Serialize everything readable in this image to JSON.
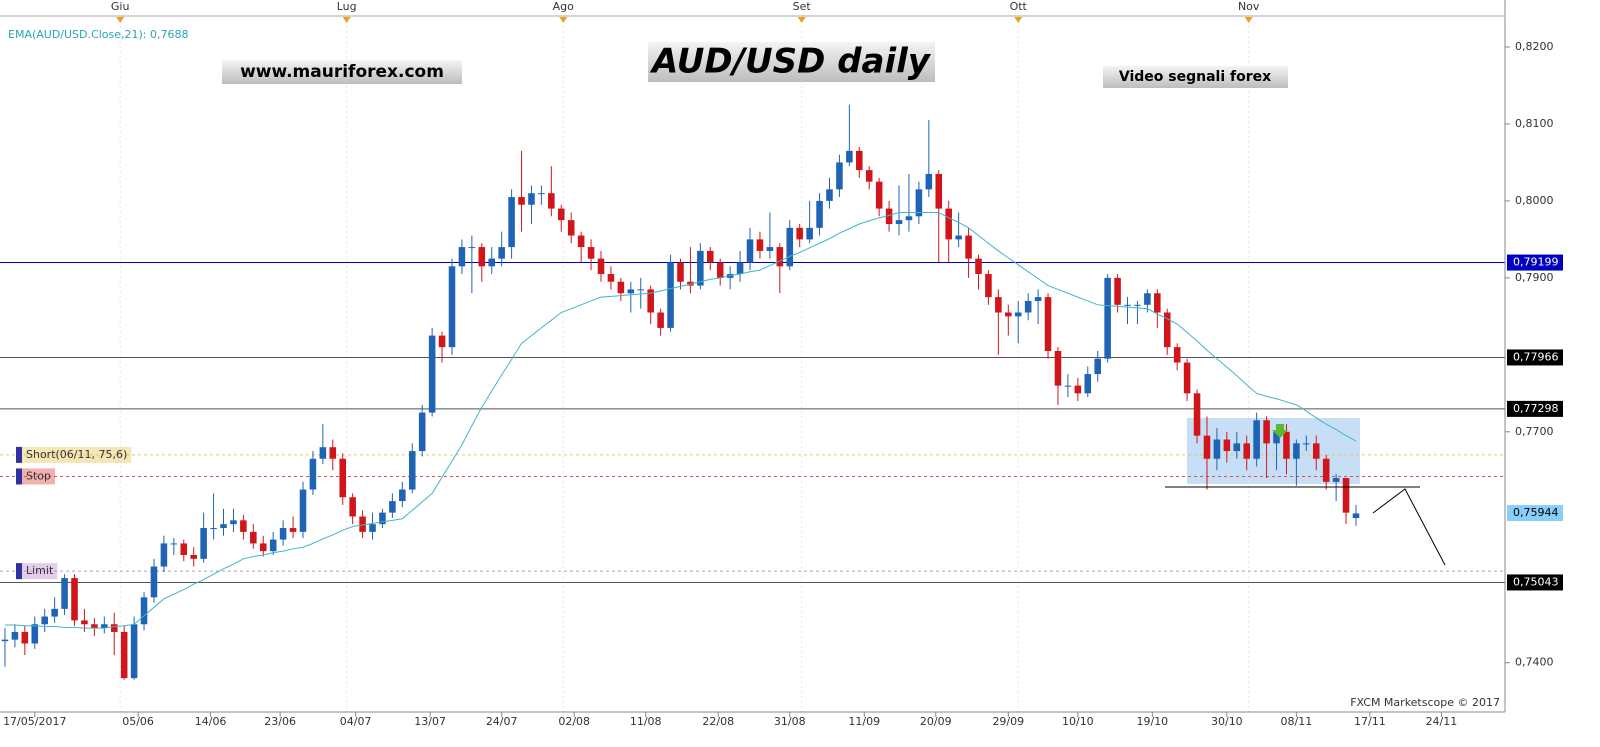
{
  "chart_data": {
    "type": "candlestick",
    "title": "AUD/USD daily",
    "annotations": [
      "www.mauriforex.com",
      "Video segnali forex",
      "FXCM Marketscope © 2017"
    ],
    "ema": {
      "name": "EMA(AUD/USD.Close,21): 0,7688",
      "color": "#3cb8c8",
      "values": [
        0.7449,
        0.7449,
        0.7448,
        0.7448,
        0.7447,
        0.7447,
        0.7446,
        0.7446,
        0.7445,
        0.7445,
        0.7445,
        0.7447,
        0.7448,
        0.745,
        0.7461,
        0.7472,
        0.7483,
        0.7489,
        0.7495,
        0.7502,
        0.7508,
        0.7515,
        0.7522,
        0.7528,
        0.7535,
        0.7538,
        0.754,
        0.7543,
        0.7545,
        0.7548,
        0.755,
        0.7555,
        0.7561,
        0.7566,
        0.7572,
        0.7577,
        0.7579,
        0.7581,
        0.7583,
        0.7585,
        0.7587,
        0.7598,
        0.7609,
        0.762,
        0.7641,
        0.7662,
        0.7683,
        0.7708,
        0.7732,
        0.7753,
        0.7774,
        0.7794,
        0.7815,
        0.7825,
        0.7835,
        0.7845,
        0.7855,
        0.786,
        0.7865,
        0.787,
        0.7875,
        0.7876,
        0.7877,
        0.7878,
        0.7879,
        0.788,
        0.7883,
        0.7886,
        0.7889,
        0.7892,
        0.7895,
        0.7898,
        0.79,
        0.7903,
        0.7905,
        0.7908,
        0.791,
        0.7916,
        0.7922,
        0.7928,
        0.7933,
        0.7939,
        0.7945,
        0.7951,
        0.7958,
        0.7964,
        0.797,
        0.7974,
        0.7978,
        0.7981,
        0.7985,
        0.7985,
        0.7985,
        0.7985,
        0.7985,
        0.7978,
        0.7972,
        0.7965,
        0.7955,
        0.7945,
        0.7935,
        0.7926,
        0.7917,
        0.7908,
        0.7899,
        0.789,
        0.7885,
        0.788,
        0.7875,
        0.787,
        0.7865,
        0.7864,
        0.7863,
        0.7862,
        0.7861,
        0.786,
        0.7853,
        0.7847,
        0.784,
        0.7829,
        0.7818,
        0.7806,
        0.7795,
        0.7784,
        0.7773,
        0.7761,
        0.775,
        0.7746,
        0.7743,
        0.7739,
        0.7735,
        0.7727,
        0.7718,
        0.771,
        0.7703,
        0.7695,
        0.7688
      ]
    },
    "open": [
      0.7428,
      0.743,
      0.744,
      0.7425,
      0.745,
      0.746,
      0.747,
      0.751,
      0.7455,
      0.745,
      0.7445,
      0.745,
      0.744,
      0.738,
      0.745,
      0.7485,
      0.7525,
      0.7555,
      0.7555,
      0.754,
      0.7535,
      0.7575,
      0.7575,
      0.758,
      0.7585,
      0.757,
      0.7555,
      0.7545,
      0.756,
      0.7575,
      0.757,
      0.7625,
      0.7665,
      0.768,
      0.7665,
      0.7615,
      0.759,
      0.757,
      0.758,
      0.7595,
      0.761,
      0.7625,
      0.7675,
      0.7725,
      0.7825,
      0.781,
      0.7915,
      0.794,
      0.794,
      0.7915,
      0.7925,
      0.794,
      0.8005,
      0.7995,
      0.801,
      0.801,
      0.799,
      0.7975,
      0.7955,
      0.794,
      0.7925,
      0.7905,
      0.7895,
      0.788,
      0.7885,
      0.7885,
      0.7855,
      0.7835,
      0.792,
      0.7895,
      0.789,
      0.7935,
      0.792,
      0.79,
      0.7905,
      0.792,
      0.795,
      0.7935,
      0.794,
      0.7915,
      0.7965,
      0.795,
      0.7965,
      0.8,
      0.8015,
      0.805,
      0.8065,
      0.804,
      0.8025,
      0.799,
      0.797,
      0.7975,
      0.798,
      0.8015,
      0.8035,
      0.799,
      0.795,
      0.7955,
      0.7925,
      0.7905,
      0.7875,
      0.7855,
      0.785,
      0.7855,
      0.787,
      0.7875,
      0.7805,
      0.776,
      0.776,
      0.775,
      0.7775,
      0.7795,
      0.79,
      0.7865,
      0.7865,
      0.7865,
      0.788,
      0.7855,
      0.781,
      0.779,
      0.775,
      0.7695,
      0.7665,
      0.769,
      0.7675,
      0.7685,
      0.7665,
      0.7715,
      0.7685,
      0.77,
      0.7665,
      0.7685,
      0.7685,
      0.7665,
      0.7635,
      0.764,
      0.7588
    ],
    "high": [
      0.7445,
      0.745,
      0.7448,
      0.746,
      0.747,
      0.7485,
      0.7515,
      0.7515,
      0.747,
      0.7458,
      0.746,
      0.7465,
      0.7448,
      0.746,
      0.7492,
      0.7535,
      0.7565,
      0.7562,
      0.756,
      0.755,
      0.7595,
      0.762,
      0.76,
      0.76,
      0.7592,
      0.758,
      0.7565,
      0.757,
      0.7585,
      0.759,
      0.7635,
      0.7675,
      0.771,
      0.769,
      0.7672,
      0.762,
      0.7598,
      0.7595,
      0.76,
      0.762,
      0.7635,
      0.7685,
      0.7735,
      0.7835,
      0.783,
      0.7925,
      0.795,
      0.7955,
      0.7945,
      0.794,
      0.796,
      0.8015,
      0.8065,
      0.802,
      0.802,
      0.8045,
      0.7995,
      0.7985,
      0.796,
      0.795,
      0.7935,
      0.7915,
      0.79,
      0.7895,
      0.79,
      0.789,
      0.786,
      0.793,
      0.7925,
      0.794,
      0.7945,
      0.794,
      0.7925,
      0.7915,
      0.7935,
      0.7965,
      0.796,
      0.7985,
      0.7945,
      0.7975,
      0.797,
      0.8,
      0.801,
      0.803,
      0.806,
      0.8125,
      0.807,
      0.8045,
      0.803,
      0.8,
      0.802,
      0.8035,
      0.8025,
      0.8105,
      0.804,
      0.8,
      0.7985,
      0.7965,
      0.793,
      0.791,
      0.7885,
      0.7865,
      0.787,
      0.788,
      0.7885,
      0.788,
      0.781,
      0.7775,
      0.777,
      0.7785,
      0.7805,
      0.7905,
      0.7905,
      0.7875,
      0.787,
      0.7885,
      0.7885,
      0.786,
      0.7815,
      0.7795,
      0.7755,
      0.772,
      0.7705,
      0.77,
      0.77,
      0.7695,
      0.7725,
      0.772,
      0.7705,
      0.771,
      0.769,
      0.7695,
      0.7695,
      0.767,
      0.7645,
      0.764,
      0.7605
    ],
    "low": [
      0.7395,
      0.742,
      0.741,
      0.7418,
      0.744,
      0.7452,
      0.7462,
      0.7448,
      0.744,
      0.7435,
      0.7438,
      0.741,
      0.7378,
      0.7378,
      0.7442,
      0.7478,
      0.7518,
      0.754,
      0.7532,
      0.7525,
      0.753,
      0.756,
      0.7565,
      0.757,
      0.756,
      0.7548,
      0.7538,
      0.754,
      0.7552,
      0.7562,
      0.7562,
      0.7618,
      0.7658,
      0.765,
      0.7605,
      0.758,
      0.7562,
      0.756,
      0.7575,
      0.7588,
      0.7602,
      0.762,
      0.7668,
      0.772,
      0.779,
      0.78,
      0.7905,
      0.788,
      0.7895,
      0.7905,
      0.7915,
      0.7925,
      0.796,
      0.797,
      0.7995,
      0.798,
      0.796,
      0.7945,
      0.792,
      0.791,
      0.7895,
      0.7885,
      0.787,
      0.7855,
      0.786,
      0.784,
      0.7825,
      0.783,
      0.7885,
      0.788,
      0.7885,
      0.791,
      0.789,
      0.7885,
      0.7895,
      0.791,
      0.7925,
      0.7925,
      0.788,
      0.791,
      0.794,
      0.7945,
      0.7955,
      0.799,
      0.8005,
      0.8045,
      0.803,
      0.8015,
      0.798,
      0.796,
      0.7955,
      0.796,
      0.797,
      0.8005,
      0.792,
      0.792,
      0.794,
      0.79,
      0.7885,
      0.7865,
      0.78,
      0.7825,
      0.7815,
      0.7845,
      0.784,
      0.7795,
      0.7735,
      0.7745,
      0.774,
      0.7745,
      0.7765,
      0.779,
      0.7855,
      0.784,
      0.784,
      0.7855,
      0.7835,
      0.78,
      0.778,
      0.774,
      0.7685,
      0.7625,
      0.765,
      0.766,
      0.7665,
      0.765,
      0.7655,
      0.764,
      0.765,
      0.7645,
      0.763,
      0.7675,
      0.765,
      0.7625,
      0.761,
      0.758,
      0.7578
    ],
    "close": [
      0.743,
      0.744,
      0.7425,
      0.745,
      0.746,
      0.747,
      0.751,
      0.7455,
      0.745,
      0.7445,
      0.745,
      0.744,
      0.738,
      0.745,
      0.7485,
      0.7525,
      0.7555,
      0.7555,
      0.754,
      0.7535,
      0.7575,
      0.7575,
      0.758,
      0.7585,
      0.757,
      0.7555,
      0.7545,
      0.756,
      0.7575,
      0.757,
      0.7625,
      0.7665,
      0.768,
      0.7665,
      0.7615,
      0.759,
      0.757,
      0.758,
      0.7595,
      0.761,
      0.7625,
      0.7675,
      0.7725,
      0.7825,
      0.781,
      0.7915,
      0.794,
      0.794,
      0.7915,
      0.7925,
      0.794,
      0.8005,
      0.7995,
      0.801,
      0.801,
      0.799,
      0.7975,
      0.7955,
      0.794,
      0.7925,
      0.7905,
      0.7895,
      0.788,
      0.7885,
      0.7885,
      0.7855,
      0.7835,
      0.792,
      0.7895,
      0.789,
      0.7935,
      0.792,
      0.79,
      0.7905,
      0.792,
      0.795,
      0.7935,
      0.794,
      0.7915,
      0.7965,
      0.795,
      0.7965,
      0.8,
      0.8015,
      0.805,
      0.8065,
      0.804,
      0.8025,
      0.799,
      0.797,
      0.7975,
      0.798,
      0.8015,
      0.8035,
      0.799,
      0.795,
      0.7955,
      0.7925,
      0.7905,
      0.7875,
      0.7855,
      0.785,
      0.7855,
      0.787,
      0.7875,
      0.7805,
      0.776,
      0.776,
      0.775,
      0.7775,
      0.7795,
      0.79,
      0.7865,
      0.7865,
      0.7865,
      0.788,
      0.7855,
      0.781,
      0.779,
      0.775,
      0.7695,
      0.7665,
      0.769,
      0.7675,
      0.7685,
      0.7665,
      0.7715,
      0.7685,
      0.77,
      0.7665,
      0.7685,
      0.7685,
      0.7665,
      0.7635,
      0.764,
      0.7595,
      0.7594
    ],
    "up_color": "#1f63b5",
    "down_color": "#d0161b",
    "xlim": [
      -0.5,
      151
    ],
    "ylim": [
      0.7336,
      0.8261
    ],
    "yticks": [
      {
        "value": 0.74,
        "label": "0,7400"
      },
      {
        "value": 0.77,
        "label": "0,7700"
      },
      {
        "value": 0.79,
        "label": "0,7900"
      },
      {
        "value": 0.8,
        "label": "0,8000"
      },
      {
        "value": 0.81,
        "label": "0,8100"
      },
      {
        "value": 0.82,
        "label": "0,8200"
      }
    ],
    "xticks": [
      {
        "value": 3,
        "label": "17/05/2017"
      },
      {
        "value": 13.4,
        "label": "05/06"
      },
      {
        "value": 20.7,
        "label": "14/06"
      },
      {
        "value": 27.7,
        "label": "23/06"
      },
      {
        "value": 35.3,
        "label": "04/07"
      },
      {
        "value": 42.8,
        "label": "13/07"
      },
      {
        "value": 50,
        "label": "24/07"
      },
      {
        "value": 57.3,
        "label": "02/08"
      },
      {
        "value": 64.5,
        "label": "11/08"
      },
      {
        "value": 71.8,
        "label": "22/08"
      },
      {
        "value": 79,
        "label": "31/08"
      },
      {
        "value": 86.5,
        "label": "11/09"
      },
      {
        "value": 93.7,
        "label": "20/09"
      },
      {
        "value": 101,
        "label": "29/09"
      },
      {
        "value": 108,
        "label": "10/10"
      },
      {
        "value": 115.5,
        "label": "19/10"
      },
      {
        "value": 123,
        "label": "30/10"
      },
      {
        "value": 130,
        "label": "08/11"
      },
      {
        "value": 137.4,
        "label": "17/11"
      },
      {
        "value": 144.6,
        "label": "24/11"
      }
    ],
    "month_ticks": [
      {
        "value": 11.6,
        "label": "Giu"
      },
      {
        "value": 34.4,
        "label": "Lug"
      },
      {
        "value": 56.2,
        "label": "Ago"
      },
      {
        "value": 80.2,
        "label": "Set"
      },
      {
        "value": 102,
        "label": "Ott"
      },
      {
        "value": 125.2,
        "label": "Nov"
      }
    ],
    "levels": [
      {
        "value": 0.79199,
        "label": "0,79199",
        "color": "#0000c0"
      },
      {
        "value": 0.77966,
        "label": "0,77966",
        "color": "#000000"
      },
      {
        "value": 0.77298,
        "label": "0,77298",
        "color": "#000000"
      },
      {
        "value": 0.75043,
        "label": "0,75043",
        "color": "#000000"
      },
      {
        "value": 0.75944,
        "label": "0,75944",
        "color": "#87cefa"
      }
    ],
    "orders": [
      {
        "value": 0.767,
        "label": "Short(06/11, 75,6)",
        "color": "#e8c860"
      },
      {
        "value": 0.7642,
        "label": "Stop",
        "color": "#e05050"
      },
      {
        "value": 0.7519,
        "label": "Limit",
        "color": "#c090d0"
      }
    ]
  }
}
